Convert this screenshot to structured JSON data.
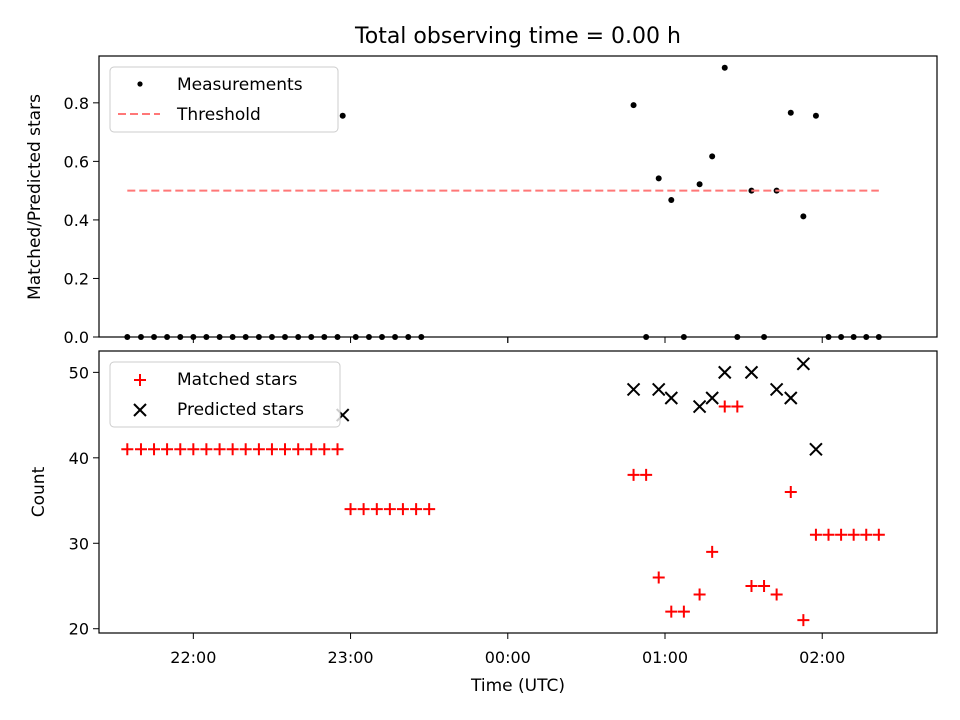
{
  "figure": {
    "title": "Total observing time = 0.00 h",
    "xlabel": "Time (UTC)",
    "xtick_labels": [
      "22:00",
      "23:00",
      "00:00",
      "01:00",
      "02:00"
    ]
  },
  "chart_data": [
    {
      "type": "scatter",
      "ylabel": "Matched/Predicted stars",
      "ylim": [
        0,
        0.96
      ],
      "yticks": [
        0.0,
        0.2,
        0.4,
        0.6,
        0.8
      ],
      "ytick_labels": [
        "0.0",
        "0.2",
        "0.4",
        "0.6",
        "0.8"
      ],
      "xlim_hours": [
        21.4,
        26.73
      ],
      "xticks_hours": [
        22,
        23,
        24,
        25,
        26
      ],
      "xtick_labels": [
        "",
        "",
        "",
        "",
        ""
      ],
      "minor_xticks_hours": [
        24
      ],
      "legend_position": "top-left",
      "series": [
        {
          "name": "Measurements",
          "marker": "dot",
          "color": "#000000",
          "x_hours": [
            21.58,
            21.667,
            21.75,
            21.833,
            21.917,
            22.0,
            22.083,
            22.167,
            22.25,
            22.333,
            22.417,
            22.5,
            22.583,
            22.667,
            22.75,
            22.833,
            22.917,
            22.95,
            23.033,
            23.117,
            23.2,
            23.283,
            23.367,
            23.45,
            24.8,
            24.88,
            24.96,
            25.04,
            25.12,
            25.22,
            25.3,
            25.38,
            25.46,
            25.55,
            25.63,
            25.71,
            25.8,
            25.88,
            25.96,
            26.04,
            26.12,
            26.2,
            26.28,
            26.36
          ],
          "y": [
            0,
            0,
            0,
            0,
            0,
            0,
            0,
            0,
            0,
            0,
            0,
            0,
            0,
            0,
            0,
            0,
            0,
            0.756,
            0,
            0,
            0,
            0,
            0,
            0,
            0.792,
            0,
            0.542,
            0.468,
            0,
            0.522,
            0.617,
            0.92,
            0,
            0.5,
            0,
            0.5,
            0.766,
            0.412,
            0.756,
            0,
            0,
            0,
            0,
            0
          ]
        },
        {
          "name": "Threshold",
          "style": "dashed",
          "color": "#ff7777",
          "x_hours": [
            21.58,
            26.36
          ],
          "y": [
            0.5,
            0.5
          ]
        }
      ]
    },
    {
      "type": "scatter",
      "ylabel": "Count",
      "ylim": [
        19.5,
        52.5
      ],
      "yticks": [
        20,
        30,
        40,
        50
      ],
      "ytick_labels": [
        "20",
        "30",
        "40",
        "50"
      ],
      "xlim_hours": [
        21.4,
        26.73
      ],
      "xticks_hours": [
        22,
        23,
        24,
        25,
        26
      ],
      "legend_position": "top-left",
      "series": [
        {
          "name": "Matched stars",
          "marker": "plus",
          "color": "#ff0000",
          "x_hours": [
            21.58,
            21.667,
            21.75,
            21.833,
            21.917,
            22.0,
            22.083,
            22.167,
            22.25,
            22.333,
            22.417,
            22.5,
            22.583,
            22.667,
            22.75,
            22.833,
            22.917,
            23.0,
            23.083,
            23.167,
            23.25,
            23.333,
            23.417,
            23.5,
            24.8,
            24.88,
            24.96,
            25.04,
            25.12,
            25.22,
            25.3,
            25.38,
            25.46,
            25.55,
            25.63,
            25.71,
            25.8,
            25.88,
            25.96,
            26.04,
            26.12,
            26.2,
            26.28,
            26.36
          ],
          "y": [
            41,
            41,
            41,
            41,
            41,
            41,
            41,
            41,
            41,
            41,
            41,
            41,
            41,
            41,
            41,
            41,
            41,
            34,
            34,
            34,
            34,
            34,
            34,
            34,
            38,
            38,
            26,
            22,
            22,
            24,
            29,
            46,
            46,
            25,
            25,
            24,
            36,
            21,
            31,
            31,
            31,
            31,
            31,
            31
          ]
        },
        {
          "name": "Predicted stars",
          "marker": "x",
          "color": "#000000",
          "x_hours": [
            22.95,
            24.8,
            24.96,
            25.04,
            25.22,
            25.3,
            25.38,
            25.55,
            25.71,
            25.8,
            25.88,
            25.96
          ],
          "y": [
            45,
            48,
            48,
            47,
            46,
            47,
            50,
            50,
            48,
            47,
            51,
            41
          ]
        }
      ]
    }
  ]
}
